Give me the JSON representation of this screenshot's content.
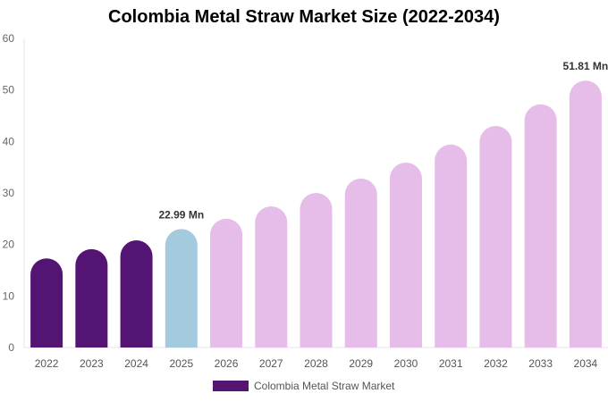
{
  "chart_data": {
    "type": "bar",
    "title": "Colombia Metal Straw Market Size (2022-2034)",
    "categories": [
      "2022",
      "2023",
      "2024",
      "2025",
      "2026",
      "2027",
      "2028",
      "2029",
      "2030",
      "2031",
      "2032",
      "2033",
      "2034"
    ],
    "series": [
      {
        "name": "Colombia Metal Straw Market",
        "values": [
          17.3,
          19.1,
          20.8,
          22.99,
          25.0,
          27.4,
          30.0,
          32.8,
          35.9,
          39.4,
          43.0,
          47.2,
          51.81
        ]
      }
    ],
    "bar_colors": [
      "#541474",
      "#541474",
      "#541474",
      "#a4cade",
      "#e6bde8",
      "#e6bde8",
      "#e6bde8",
      "#e6bde8",
      "#e6bde8",
      "#e6bde8",
      "#e6bde8",
      "#e6bde8",
      "#e6bde8"
    ],
    "data_labels": {
      "2025": "22.99 Mn",
      "2034": "51.81 Mn"
    },
    "ylim": [
      0,
      60
    ],
    "yticks": [
      0,
      10,
      20,
      30,
      40,
      50,
      60
    ],
    "xlabel": "",
    "ylabel": "",
    "grid": false,
    "legend": "bottom",
    "legend_color": "#541474"
  }
}
